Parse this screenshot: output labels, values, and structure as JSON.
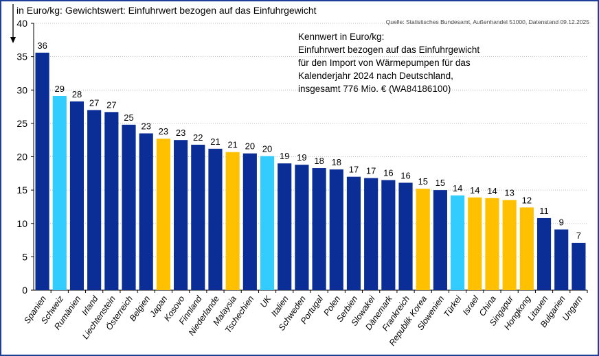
{
  "chart_data": {
    "type": "bar",
    "title": "in Euro/kg: Gewichtswert: Einfuhrwert bezogen auf das Einfuhrgewicht",
    "source": "Quelle: Statistisches Bundesamt, Außenhandel 51000, Datenstand 09.12.2025",
    "annotation": [
      "Kennwert in Euro/kg:",
      "Einfuhrwert bezogen auf das Einfuhrgewicht",
      "für den Import von Wärmepumpen  für das",
      "Kalenderjahr 2024 nach Deutschland,",
      "insgesamt 776 Mio. € (WA84186100)"
    ],
    "ylim": [
      0,
      40
    ],
    "yticks": [
      0,
      5,
      10,
      15,
      20,
      25,
      30,
      35,
      40
    ],
    "grid": true,
    "categories": [
      "Spanien",
      "Schweiz",
      "Rumänien",
      "Irland",
      "Liechtenstein",
      "Österreich",
      "Belgien",
      "Japan",
      "Kosovo",
      "Finnland",
      "Niederlande",
      "Malaysia",
      "Tschechien",
      "UK",
      "Italien",
      "Schweden",
      "Portugal",
      "Polen",
      "Serbien",
      "Slowakei",
      "Dänemark",
      "Frankreich",
      "Republik Korea",
      "Slowenien",
      "Türkei",
      "Israel",
      "China",
      "Singapur",
      "Hongkong",
      "Litauen",
      "Bulgarien",
      "Ungarn"
    ],
    "values": [
      35.6,
      29.1,
      28.3,
      27.0,
      26.7,
      24.8,
      23.5,
      22.7,
      22.5,
      21.8,
      21.2,
      20.7,
      20.5,
      20.1,
      19.0,
      18.8,
      18.3,
      18.1,
      17.0,
      16.8,
      16.5,
      16.1,
      15.2,
      15.0,
      14.2,
      13.9,
      13.8,
      13.5,
      12.4,
      10.8,
      9.1,
      7.1
    ],
    "labels": [
      "36",
      "29",
      "28",
      "27",
      "27",
      "25",
      "23",
      "23",
      "23",
      "22",
      "21",
      "21",
      "20",
      "20",
      "19",
      "19",
      "18",
      "18",
      "17",
      "17",
      "16",
      "16",
      "15",
      "15",
      "14",
      "14",
      "14",
      "13",
      "12",
      "11",
      "9",
      "7"
    ],
    "color_groups": [
      "navy",
      "light",
      "navy",
      "navy",
      "navy",
      "navy",
      "navy",
      "gold",
      "navy",
      "navy",
      "navy",
      "gold",
      "navy",
      "light",
      "navy",
      "navy",
      "navy",
      "navy",
      "navy",
      "navy",
      "navy",
      "navy",
      "gold",
      "navy",
      "light",
      "gold",
      "gold",
      "gold",
      "gold",
      "navy",
      "navy",
      "navy"
    ],
    "colors": {
      "navy": "#0a2e96",
      "light": "#33ccff",
      "gold": "#ffc000"
    }
  }
}
